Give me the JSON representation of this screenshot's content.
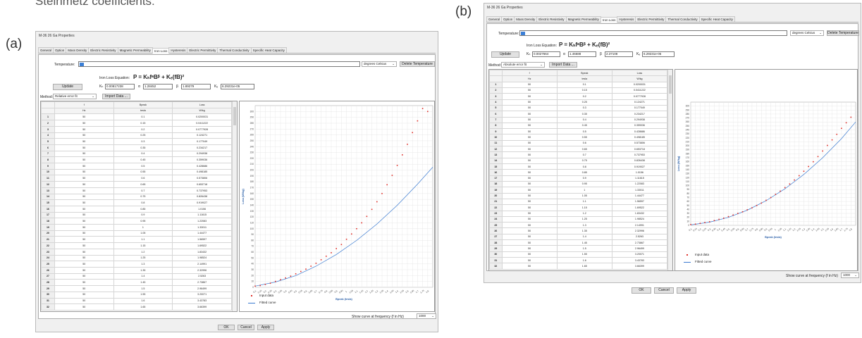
{
  "caption": "Steinmetz coefficients:",
  "panels": [
    {
      "label": "(a)",
      "window_title": "M-36 26 Ga Properties",
      "tabs": [
        "General",
        "Option",
        "Mass Density",
        "Electric Resistivity",
        "Magnetic Permeability",
        "Iron Loss",
        "Hysteresis",
        "Electric Permittivity",
        "Thermal Conductivity",
        "Specific Heat Capacity"
      ],
      "active_tab": 5,
      "temperature_label": "Temperature:",
      "temperature_unit": "degrees Celsius",
      "delete_temperature": "Delete Temperature",
      "equation_label": "Iron Loss Equation:",
      "equation_text": "P = KₕfᵃBᵝ + Kₑ(fB)²",
      "update_label": "Update",
      "coef_labels": {
        "kh": "Kₕ",
        "alpha": "α",
        "beta": "β",
        "ke": "Kₑ"
      },
      "coef_values": {
        "kh": "0.00817238",
        "alpha": "1.28452",
        "beta": "1.89279",
        "ke": "6.29231e-05"
      },
      "method_label": "Method:",
      "method_value": "Relative error fit",
      "import_label": "Import Data ...",
      "legend": {
        "input": "Input data",
        "fitted": "Fitted curve"
      },
      "show_curve_label": "Show curve at frequency (f in Hz)",
      "show_curve_value": "1000",
      "ok_label": "OK",
      "cancel_label": "Cancel",
      "apply_label": "Apply"
    },
    {
      "label": "(b)",
      "window_title": "M-36 26 Ga Properties",
      "tabs": [
        "General",
        "Option",
        "Mass Density",
        "Electric Resistivity",
        "Magnetic Permeability",
        "Iron Loss",
        "Hysteresis",
        "Electric Permittivity",
        "Thermal Conductivity",
        "Specific Heat Capacity"
      ],
      "active_tab": 5,
      "temperature_label": "Temperature:",
      "temperature_unit": "degrees Celsius",
      "delete_temperature": "Delete Temperature",
      "equation_label": "Iron Loss Equation:",
      "equation_text": "P = KₕfᵃBᵝ + Kₑ(fB)²",
      "update_label": "Update",
      "coef_labels": {
        "kh": "Kₕ",
        "alpha": "α",
        "beta": "β",
        "ke": "Kₑ"
      },
      "coef_values": {
        "kh": "0.0027664",
        "alpha": "1.46688",
        "beta": "2.37108",
        "ke": "6.29231e-05"
      },
      "method_label": "Method:",
      "method_value": "Absolute error fit",
      "import_label": "Import Data ...",
      "legend": {
        "input": "Input data",
        "fitted": "Fitted curve"
      },
      "show_curve_label": "Show curve at frequency (f in Hz)",
      "show_curve_value": "1000",
      "ok_label": "OK",
      "cancel_label": "Cancel",
      "apply_label": "Apply"
    }
  ],
  "table": {
    "headers": [
      "f",
      "Bpeak",
      "Loss"
    ],
    "units": [
      "Hz",
      "tesla",
      "W/kg"
    ],
    "rows": [
      [
        "1",
        "50",
        "0.1",
        "0.0200031"
      ],
      [
        "2",
        "50",
        "0.15",
        "0.0411222"
      ],
      [
        "3",
        "50",
        "0.2",
        "0.0777928"
      ],
      [
        "4",
        "50",
        "0.25",
        "0.124271"
      ],
      [
        "5",
        "50",
        "0.3",
        "0.177049"
      ],
      [
        "6",
        "50",
        "0.35",
        "0.234217"
      ],
      [
        "7",
        "50",
        "0.4",
        "0.294938"
      ],
      [
        "8",
        "50",
        "0.45",
        "0.359036"
      ],
      [
        "9",
        "50",
        "0.5",
        "0.428686"
      ],
      [
        "10",
        "50",
        "0.55",
        "0.498185"
      ],
      [
        "11",
        "50",
        "0.6",
        "0.573806"
      ],
      [
        "12",
        "50",
        "0.65",
        "0.653718"
      ],
      [
        "13",
        "50",
        "0.7",
        "0.737953"
      ],
      [
        "14",
        "50",
        "0.75",
        "0.826438"
      ],
      [
        "15",
        "50",
        "0.8",
        "0.919027"
      ],
      [
        "16",
        "50",
        "0.85",
        "1.0156"
      ],
      [
        "17",
        "50",
        "0.9",
        "1.11615"
      ],
      [
        "18",
        "50",
        "0.95",
        "1.22083"
      ],
      [
        "19",
        "50",
        "1",
        "1.33011"
      ],
      [
        "20",
        "50",
        "1.05",
        "1.44477"
      ],
      [
        "21",
        "50",
        "1.1",
        "1.56597"
      ],
      [
        "22",
        "50",
        "1.15",
        "1.69522"
      ],
      [
        "23",
        "50",
        "1.2",
        "1.83432"
      ],
      [
        "24",
        "50",
        "1.25",
        "1.98524"
      ],
      [
        "25",
        "50",
        "1.3",
        "2.14991"
      ],
      [
        "26",
        "50",
        "1.35",
        "2.32996"
      ],
      [
        "27",
        "50",
        "1.4",
        "2.5263"
      ],
      [
        "28",
        "50",
        "1.45",
        "2.73867"
      ],
      [
        "29",
        "50",
        "1.5",
        "2.96499"
      ],
      [
        "30",
        "50",
        "1.55",
        "3.20071"
      ],
      [
        "31",
        "50",
        "1.6",
        "3.43783"
      ],
      [
        "32",
        "50",
        "1.65",
        "3.66399"
      ]
    ]
  },
  "chart_data": [
    {
      "type": "scatter",
      "xlabel": "Bpeak (tesla)",
      "ylabel": "Loss (W/kg)",
      "xlim": [
        0.1,
        1.85
      ],
      "ylim": [
        0,
        310
      ],
      "x_ticks": [
        "0.1",
        "0.15",
        "0.2",
        "0.25",
        "0.3",
        "0.35",
        "0.4",
        "0.45",
        "0.5",
        "0.55",
        "0.6",
        "0.65",
        "0.7",
        "0.75",
        "0.8",
        "0.85",
        "0.9",
        "0.95",
        "1",
        "1.05",
        "1.1",
        "1.15",
        "1.2",
        "1.25",
        "1.3",
        "1.35",
        "1.4",
        "1.45",
        "1.5",
        "1.55",
        "1.6",
        "1.65",
        "1.7",
        "1.75",
        "1.8"
      ],
      "y_ticks": [
        0,
        10,
        20,
        30,
        40,
        50,
        60,
        70,
        80,
        90,
        100,
        110,
        120,
        130,
        140,
        150,
        160,
        170,
        180,
        190,
        200,
        210,
        220,
        230,
        240,
        250,
        260,
        270,
        280,
        290,
        300
      ],
      "series": [
        {
          "name": "Input data",
          "x": [
            0.1,
            0.15,
            0.2,
            0.25,
            0.3,
            0.35,
            0.4,
            0.45,
            0.5,
            0.55,
            0.6,
            0.65,
            0.7,
            0.75,
            0.8,
            0.85,
            0.9,
            0.95,
            1.0,
            1.05,
            1.1,
            1.15,
            1.2,
            1.25,
            1.3,
            1.35,
            1.4,
            1.45,
            1.5,
            1.55,
            1.6,
            1.65,
            1.7,
            1.75,
            1.8
          ],
          "y": [
            2,
            3,
            5,
            7,
            10,
            13,
            16,
            19,
            23,
            27,
            31,
            36,
            41,
            47,
            53,
            59,
            66,
            73,
            82,
            91,
            100,
            110,
            121,
            133,
            146,
            160,
            175,
            191,
            208,
            226,
            244,
            264,
            284,
            305,
            300
          ]
        },
        {
          "name": "Fitted curve",
          "x": [
            0.1,
            0.3,
            0.5,
            0.7,
            0.9,
            1.1,
            1.3,
            1.5,
            1.7,
            1.85
          ],
          "y": [
            2,
            9,
            20,
            36,
            56,
            80,
            108,
            140,
            176,
            205
          ]
        }
      ]
    },
    {
      "type": "scatter",
      "xlabel": "Bpeak (tesla)",
      "ylabel": "Loss (W/kg)",
      "xlim": [
        0.1,
        1.85
      ],
      "ylim": [
        0,
        310
      ],
      "x_ticks": [
        "0.1",
        "0.15",
        "0.2",
        "0.25",
        "0.3",
        "0.35",
        "0.4",
        "0.45",
        "0.5",
        "0.55",
        "0.6",
        "0.65",
        "0.7",
        "0.75",
        "0.8",
        "0.85",
        "0.9",
        "0.95",
        "1",
        "1.05",
        "1.1",
        "1.15",
        "1.2",
        "1.25",
        "1.3",
        "1.35",
        "1.4",
        "1.45",
        "1.5",
        "1.55",
        "1.6",
        "1.65",
        "1.7",
        "1.75",
        "1.8"
      ],
      "y_ticks": [
        0,
        10,
        20,
        30,
        40,
        50,
        60,
        70,
        80,
        90,
        100,
        110,
        120,
        130,
        140,
        150,
        160,
        170,
        180,
        190,
        200,
        210,
        220,
        230,
        240,
        250,
        260,
        270,
        280,
        290,
        300
      ],
      "series": [
        {
          "name": "Input data",
          "x": [
            0.1,
            0.15,
            0.2,
            0.25,
            0.3,
            0.35,
            0.4,
            0.45,
            0.5,
            0.55,
            0.6,
            0.65,
            0.7,
            0.75,
            0.8,
            0.85,
            0.9,
            0.95,
            1.0,
            1.05,
            1.1,
            1.15,
            1.2,
            1.25,
            1.3,
            1.35,
            1.4,
            1.45,
            1.5,
            1.55,
            1.6,
            1.65,
            1.7,
            1.75,
            1.8
          ],
          "y": [
            2,
            3,
            5,
            7,
            9,
            12,
            15,
            18,
            22,
            26,
            30,
            34,
            39,
            44,
            50,
            56,
            63,
            70,
            78,
            86,
            95,
            104,
            114,
            125,
            136,
            148,
            160,
            173,
            187,
            201,
            215,
            229,
            244,
            258,
            272
          ]
        },
        {
          "name": "Fitted curve",
          "x": [
            0.1,
            0.3,
            0.5,
            0.7,
            0.9,
            1.1,
            1.3,
            1.5,
            1.7,
            1.85
          ],
          "y": [
            1,
            8,
            20,
            38,
            62,
            92,
            128,
            170,
            218,
            260
          ]
        }
      ]
    }
  ]
}
